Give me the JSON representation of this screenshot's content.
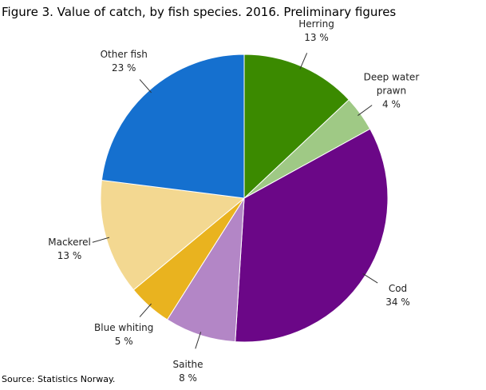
{
  "chart_data": {
    "type": "pie",
    "title": "Figure 3. Value of catch, by fish species. 2016. Preliminary figures",
    "source": "Source: Statistics Norway.",
    "categories": [
      "Herring",
      "Deep water prawn",
      "Cod",
      "Saithe",
      "Blue whiting",
      "Mackerel",
      "Other fish"
    ],
    "values": [
      13,
      4,
      34,
      8,
      5,
      13,
      23
    ],
    "value_labels": [
      "13 %",
      "4 %",
      "34 %",
      "8 %",
      "5 %",
      "13 %",
      "23 %"
    ],
    "colors": [
      "#3b8a00",
      "#9fc985",
      "#6b0787",
      "#b386c6",
      "#e9b31f",
      "#f3d891",
      "#1570cf"
    ]
  }
}
